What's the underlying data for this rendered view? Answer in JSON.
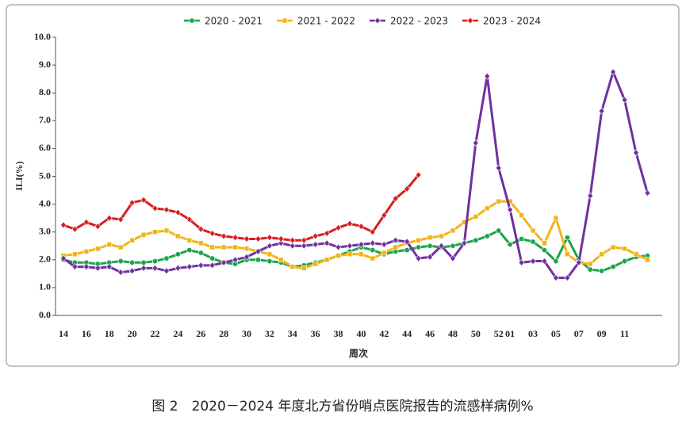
{
  "chart_data": {
    "type": "line",
    "caption": "图 2　2020－2024 年度北方省份哨点医院报告的流感样病例%",
    "y_label": "ILI(%)",
    "x_label": "周次",
    "categories": [
      "14",
      null,
      "16",
      null,
      "18",
      null,
      "20",
      null,
      "22",
      null,
      "24",
      null,
      "26",
      null,
      "28",
      null,
      "30",
      null,
      "32",
      null,
      "34",
      null,
      "36",
      null,
      "38",
      null,
      "40",
      null,
      "42",
      null,
      "44",
      null,
      "46",
      null,
      "48",
      null,
      "50",
      null,
      "52",
      "01",
      null,
      "03",
      null,
      "05",
      null,
      "07",
      null,
      "09",
      null,
      "11",
      null,
      null
    ],
    "ylim": [
      0,
      10
    ],
    "yticks": [
      {
        "value": 0,
        "label": "0.0"
      },
      {
        "value": 1,
        "label": "1.0"
      },
      {
        "value": 2,
        "label": "2.0"
      },
      {
        "value": 3,
        "label": "3.0"
      },
      {
        "value": 4,
        "label": "4.0"
      },
      {
        "value": 5,
        "label": "5.0"
      },
      {
        "value": 6,
        "label": "6.0"
      },
      {
        "value": 7,
        "label": "7.0"
      },
      {
        "value": 8,
        "label": "8.0"
      },
      {
        "value": 9,
        "label": "9.0"
      },
      {
        "value": 10,
        "label": "10.0"
      }
    ],
    "series": [
      {
        "name": "2020 - 2021",
        "color": "#1aa54a",
        "marker": "circle",
        "values": [
          2.0,
          1.9,
          1.9,
          1.85,
          1.9,
          1.95,
          1.9,
          1.9,
          1.95,
          2.05,
          2.2,
          2.35,
          2.25,
          2.05,
          1.9,
          1.85,
          2.0,
          2.0,
          1.95,
          1.9,
          1.75,
          1.8,
          1.9,
          2.0,
          2.15,
          2.3,
          2.45,
          2.35,
          2.2,
          2.3,
          2.35,
          2.45,
          2.5,
          2.45,
          2.5,
          2.6,
          2.7,
          2.85,
          3.05,
          2.55,
          2.75,
          2.65,
          2.35,
          1.95,
          2.8,
          2.0,
          1.65,
          1.6,
          1.75,
          1.95,
          2.1,
          2.15
        ]
      },
      {
        "name": "2021 - 2022",
        "color": "#f2b418",
        "marker": "square",
        "values": [
          2.15,
          2.2,
          2.3,
          2.4,
          2.55,
          2.45,
          2.7,
          2.9,
          3.0,
          3.05,
          2.85,
          2.7,
          2.6,
          2.45,
          2.45,
          2.45,
          2.4,
          2.3,
          2.2,
          2.0,
          1.75,
          1.7,
          1.85,
          2.0,
          2.15,
          2.2,
          2.2,
          2.05,
          2.25,
          2.45,
          2.6,
          2.7,
          2.8,
          2.85,
          3.05,
          3.35,
          3.55,
          3.85,
          4.1,
          4.1,
          3.6,
          3.05,
          2.6,
          3.5,
          2.2,
          1.9,
          1.85,
          2.2,
          2.45,
          2.4,
          2.2,
          2.0
        ]
      },
      {
        "name": "2022 - 2023",
        "color": "#7030a0",
        "marker": "diamond",
        "values": [
          2.05,
          1.75,
          1.75,
          1.7,
          1.75,
          1.55,
          1.6,
          1.7,
          1.7,
          1.6,
          1.7,
          1.75,
          1.8,
          1.8,
          1.9,
          2.0,
          2.1,
          2.3,
          2.5,
          2.6,
          2.5,
          2.5,
          2.55,
          2.6,
          2.45,
          2.5,
          2.55,
          2.6,
          2.55,
          2.7,
          2.65,
          2.05,
          2.1,
          2.5,
          2.05,
          2.6,
          6.2,
          8.6,
          5.3,
          3.8,
          1.9,
          1.95,
          1.95,
          1.35,
          1.35,
          1.9,
          4.3,
          7.35,
          8.75,
          7.75,
          5.85,
          4.4
        ]
      },
      {
        "name": "2023 - 2024",
        "color": "#d81e1e",
        "marker": "diamond",
        "values": [
          3.25,
          3.1,
          3.35,
          3.2,
          3.5,
          3.45,
          4.05,
          4.15,
          3.85,
          3.8,
          3.7,
          3.45,
          3.1,
          2.95,
          2.85,
          2.8,
          2.75,
          2.75,
          2.8,
          2.75,
          2.7,
          2.7,
          2.85,
          2.95,
          3.15,
          3.3,
          3.2,
          3.0,
          3.6,
          4.2,
          4.55,
          5.05,
          null,
          null,
          null,
          null,
          null,
          null,
          null,
          null,
          null,
          null,
          null,
          null,
          null,
          null,
          null,
          null,
          null,
          null,
          null,
          null
        ]
      }
    ]
  }
}
